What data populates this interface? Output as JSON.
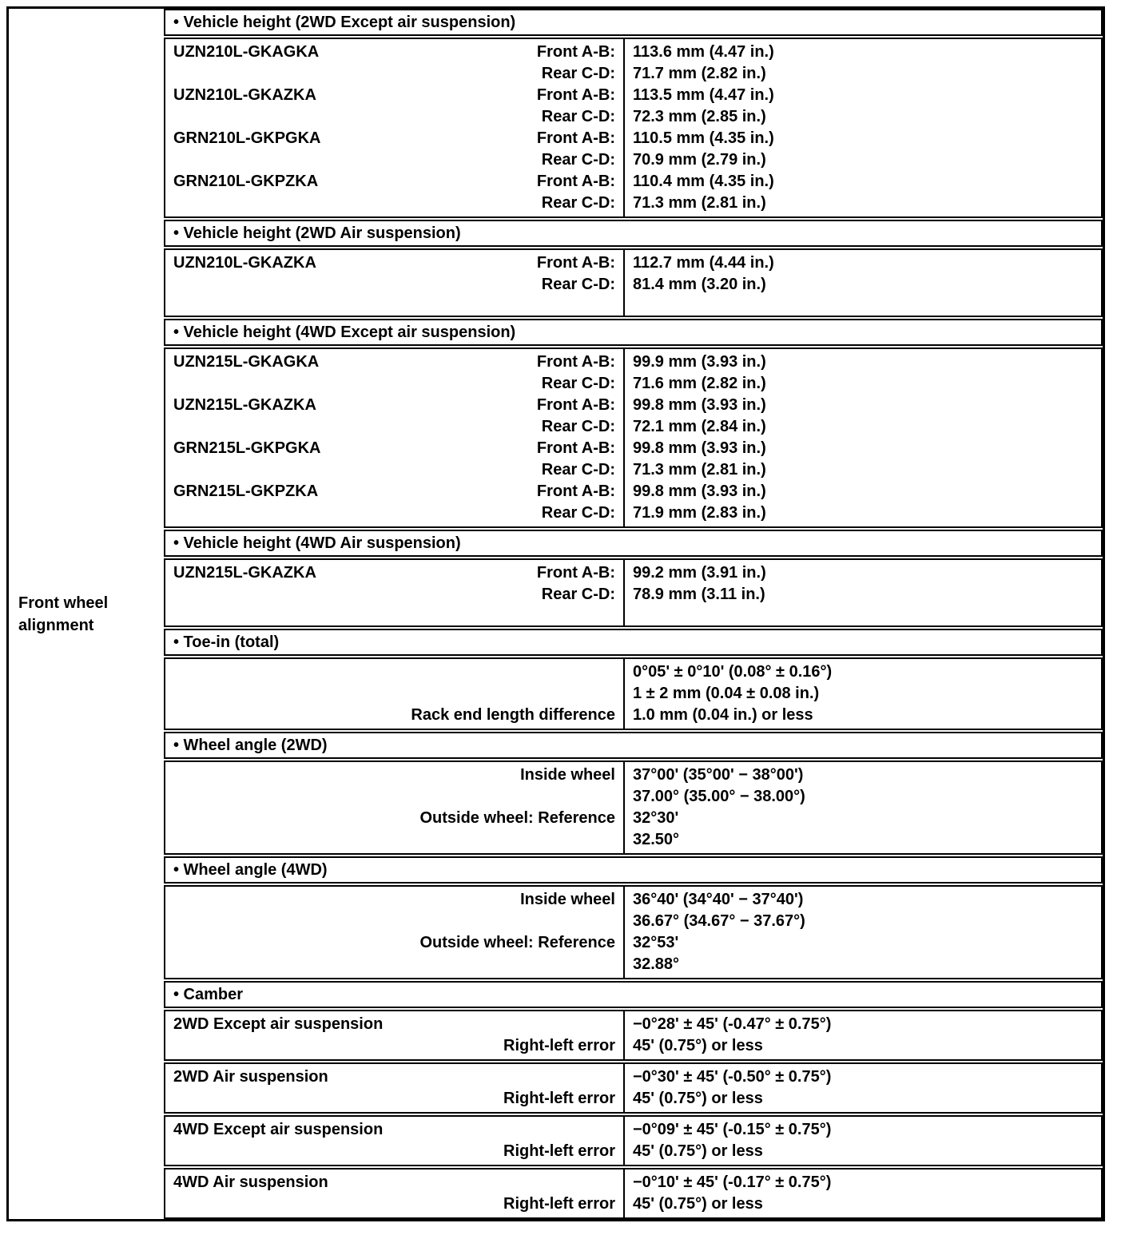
{
  "page": {
    "background": "#ffffff",
    "line_color": "#000000"
  },
  "table": {
    "row_label": "Front wheel alignment",
    "sections": [
      {
        "header": "• Vehicle height (2WD Except air suspension)",
        "boxes": [
          {
            "rows": [
              {
                "left": "UZN210L-GKAGKA",
                "label": "Front A-B:",
                "value": "113.6 mm (4.47 in.)"
              },
              {
                "left": "",
                "label": "Rear C-D:",
                "value": "71.7 mm (2.82 in.)"
              },
              {
                "left": "UZN210L-GKAZKA",
                "label": "Front A-B:",
                "value": "113.5 mm (4.47 in.)"
              },
              {
                "left": "",
                "label": "Rear C-D:",
                "value": "72.3 mm (2.85 in.)"
              },
              {
                "left": "GRN210L-GKPGKA",
                "label": "Front A-B:",
                "value": "110.5 mm (4.35 in.)"
              },
              {
                "left": "",
                "label": "Rear C-D:",
                "value": "70.9 mm (2.79 in.)"
              },
              {
                "left": "GRN210L-GKPZKA",
                "label": "Front A-B:",
                "value": "110.4 mm (4.35 in.)"
              },
              {
                "left": "",
                "label": "Rear C-D:",
                "value": "71.3 mm (2.81 in.)"
              }
            ]
          }
        ]
      },
      {
        "header": "• Vehicle height (2WD Air suspension)",
        "boxes": [
          {
            "rows": [
              {
                "left": "UZN210L-GKAZKA",
                "label": "Front A-B:",
                "value": "112.7 mm (4.44 in.)"
              },
              {
                "left": "",
                "label": "Rear C-D:",
                "value": "81.4 mm (3.20 in.)"
              }
            ]
          }
        ]
      },
      {
        "header": "• Vehicle height (4WD Except air suspension)",
        "boxes": [
          {
            "rows": [
              {
                "left": "UZN215L-GKAGKA",
                "label": "Front A-B:",
                "value": "99.9 mm (3.93 in.)"
              },
              {
                "left": "",
                "label": "Rear C-D:",
                "value": "71.6 mm (2.82 in.)"
              },
              {
                "left": "UZN215L-GKAZKA",
                "label": "Front A-B:",
                "value": "99.8 mm (3.93 in.)"
              },
              {
                "left": "",
                "label": "Rear C-D:",
                "value": "72.1 mm (2.84 in.)"
              },
              {
                "left": "GRN215L-GKPGKA",
                "label": "Front A-B:",
                "value": "99.8 mm (3.93 in.)"
              },
              {
                "left": "",
                "label": "Rear C-D:",
                "value": "71.3 mm (2.81 in.)"
              },
              {
                "left": "GRN215L-GKPZKA",
                "label": "Front A-B:",
                "value": "99.8 mm (3.93 in.)"
              },
              {
                "left": "",
                "label": "Rear C-D:",
                "value": "71.9 mm (2.83 in.)"
              }
            ]
          }
        ]
      },
      {
        "header": "• Vehicle height (4WD Air suspension)",
        "boxes": [
          {
            "rows": [
              {
                "left": "UZN215L-GKAZKA",
                "label": "Front A-B:",
                "value": "99.2 mm (3.91 in.)"
              },
              {
                "left": "",
                "label": "Rear C-D:",
                "value": "78.9 mm (3.11 in.)"
              }
            ]
          }
        ]
      },
      {
        "header": "• Toe-in (total)",
        "boxes": [
          {
            "rows": [
              {
                "left": "",
                "label": "",
                "value": "0°05' ± 0°10' (0.08° ± 0.16°)"
              },
              {
                "left": "",
                "label": "",
                "value": "1 ± 2 mm (0.04 ± 0.08 in.)"
              },
              {
                "left": "",
                "label": "Rack end length difference",
                "value": "1.0 mm (0.04 in.) or less"
              }
            ]
          }
        ]
      },
      {
        "header": "• Wheel angle (2WD)",
        "boxes": [
          {
            "rows": [
              {
                "left": "",
                "label": "Inside wheel",
                "value": "37°00' (35°00' − 38°00')"
              },
              {
                "left": "",
                "label": "",
                "value": "37.00° (35.00° − 38.00°)"
              },
              {
                "left": "",
                "label": "Outside wheel: Reference",
                "value": "32°30'"
              },
              {
                "left": "",
                "label": "",
                "value": "32.50°"
              }
            ]
          }
        ]
      },
      {
        "header": "• Wheel angle (4WD)",
        "boxes": [
          {
            "rows": [
              {
                "left": "",
                "label": "Inside wheel",
                "value": "36°40' (34°40' − 37°40')"
              },
              {
                "left": "",
                "label": "",
                "value": "36.67° (34.67° − 37.67°)"
              },
              {
                "left": "",
                "label": "Outside wheel: Reference",
                "value": "32°53'"
              },
              {
                "left": "",
                "label": "",
                "value": "32.88°"
              }
            ]
          }
        ]
      },
      {
        "header": "• Camber",
        "boxes": [
          {
            "rows": [
              {
                "left": "2WD Except air suspension",
                "label": "",
                "value": "−0°28' ± 45' (-0.47° ± 0.75°)"
              },
              {
                "left": "",
                "label": "Right-left error",
                "value": "45' (0.75°) or less"
              }
            ]
          },
          {
            "rows": [
              {
                "left": "2WD Air suspension",
                "label": "",
                "value": "−0°30' ± 45' (-0.50° ± 0.75°)"
              },
              {
                "left": "",
                "label": "Right-left error",
                "value": "45' (0.75°) or less"
              }
            ]
          },
          {
            "rows": [
              {
                "left": "4WD Except air suspension",
                "label": "",
                "value": "−0°09' ± 45' (-0.15° ± 0.75°)"
              },
              {
                "left": "",
                "label": "Right-left error",
                "value": "45' (0.75°) or less"
              }
            ]
          },
          {
            "rows": [
              {
                "left": "4WD Air suspension",
                "label": "",
                "value": "−0°10' ± 45' (-0.17° ± 0.75°)"
              },
              {
                "left": "",
                "label": "Right-left error",
                "value": "45' (0.75°) or less"
              }
            ]
          }
        ]
      }
    ]
  }
}
